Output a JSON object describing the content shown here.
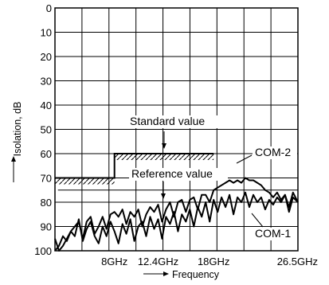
{
  "chart_data": {
    "type": "line",
    "xlabel": "Frequency",
    "ylabel": "Isolation, dB",
    "xlim": [
      2,
      26.5
    ],
    "ylim": [
      100,
      0
    ],
    "x_tick_values": [
      8,
      12.4,
      18,
      26.5
    ],
    "x_tick_labels": [
      "8GHz",
      "12.4GHz",
      "18GHz",
      "26.5GHz"
    ],
    "y_ticks": [
      0,
      10,
      20,
      30,
      40,
      50,
      60,
      70,
      80,
      90,
      100
    ],
    "grid": true,
    "standard_value": {
      "label": "Standard value",
      "steps": [
        {
          "x_start": 2,
          "x_end": 8,
          "y": 70
        },
        {
          "x_start": 8,
          "x_end": 18,
          "y": 60
        }
      ]
    },
    "reference_value": {
      "label": "Reference value",
      "values": [
        [
          2.3,
          75
        ],
        [
          26.5,
          75
        ]
      ]
    },
    "series": [
      {
        "name": "COM-2",
        "color": "#000000",
        "values": [
          [
            2.0,
            95
          ],
          [
            2.4,
            100
          ],
          [
            2.8,
            98
          ],
          [
            3.2,
            95
          ],
          [
            3.6,
            92
          ],
          [
            4.0,
            90
          ],
          [
            4.4,
            88
          ],
          [
            4.8,
            95
          ],
          [
            5.2,
            88
          ],
          [
            5.6,
            86
          ],
          [
            6.0,
            93
          ],
          [
            6.4,
            90
          ],
          [
            6.8,
            86
          ],
          [
            7.2,
            91
          ],
          [
            7.6,
            85
          ],
          [
            8.0,
            84
          ],
          [
            8.4,
            86
          ],
          [
            8.8,
            83
          ],
          [
            9.2,
            89
          ],
          [
            9.6,
            84
          ],
          [
            10.0,
            86
          ],
          [
            10.4,
            83
          ],
          [
            10.8,
            90
          ],
          [
            11.2,
            85
          ],
          [
            11.6,
            82
          ],
          [
            12.0,
            84
          ],
          [
            12.4,
            81
          ],
          [
            12.8,
            88
          ],
          [
            13.2,
            83
          ],
          [
            13.6,
            80
          ],
          [
            14.0,
            86
          ],
          [
            14.4,
            80
          ],
          [
            14.8,
            79
          ],
          [
            15.2,
            84
          ],
          [
            15.6,
            79
          ],
          [
            16.0,
            78
          ],
          [
            16.4,
            83
          ],
          [
            16.8,
            77
          ],
          [
            17.2,
            77
          ],
          [
            17.6,
            80
          ],
          [
            18.0,
            75
          ],
          [
            18.4,
            74
          ],
          [
            18.8,
            73
          ],
          [
            19.2,
            72
          ],
          [
            19.6,
            71
          ],
          [
            20.0,
            72
          ],
          [
            20.4,
            71
          ],
          [
            20.8,
            72
          ],
          [
            21.2,
            70
          ],
          [
            21.6,
            71
          ],
          [
            22.0,
            71
          ],
          [
            22.4,
            72
          ],
          [
            22.8,
            73
          ],
          [
            23.2,
            75
          ],
          [
            23.6,
            76
          ],
          [
            24.0,
            78
          ],
          [
            24.4,
            76
          ],
          [
            24.8,
            79
          ],
          [
            25.2,
            77
          ],
          [
            25.6,
            84
          ],
          [
            26.0,
            78
          ],
          [
            26.5,
            80
          ]
        ]
      },
      {
        "name": "COM-1",
        "color": "#000000",
        "values": [
          [
            2.0,
            100
          ],
          [
            2.4,
            98
          ],
          [
            2.8,
            94
          ],
          [
            3.2,
            96
          ],
          [
            3.6,
            92
          ],
          [
            4.0,
            94
          ],
          [
            4.4,
            87
          ],
          [
            4.8,
            96
          ],
          [
            5.2,
            91
          ],
          [
            5.6,
            88
          ],
          [
            6.0,
            94
          ],
          [
            6.4,
            97
          ],
          [
            6.8,
            90
          ],
          [
            7.2,
            94
          ],
          [
            7.6,
            88
          ],
          [
            8.0,
            92
          ],
          [
            8.4,
            97
          ],
          [
            8.8,
            89
          ],
          [
            9.2,
            93
          ],
          [
            9.6,
            87
          ],
          [
            10.0,
            96
          ],
          [
            10.4,
            90
          ],
          [
            10.8,
            88
          ],
          [
            11.2,
            94
          ],
          [
            11.6,
            86
          ],
          [
            12.0,
            91
          ],
          [
            12.4,
            87
          ],
          [
            12.8,
            95
          ],
          [
            13.2,
            86
          ],
          [
            13.6,
            89
          ],
          [
            14.0,
            84
          ],
          [
            14.4,
            92
          ],
          [
            14.8,
            85
          ],
          [
            15.2,
            88
          ],
          [
            15.6,
            83
          ],
          [
            16.0,
            90
          ],
          [
            16.4,
            82
          ],
          [
            16.8,
            86
          ],
          [
            17.2,
            80
          ],
          [
            17.6,
            88
          ],
          [
            18.0,
            79
          ],
          [
            18.4,
            84
          ],
          [
            18.8,
            78
          ],
          [
            19.2,
            82
          ],
          [
            19.6,
            77
          ],
          [
            20.0,
            85
          ],
          [
            20.4,
            78
          ],
          [
            20.8,
            80
          ],
          [
            21.2,
            76
          ],
          [
            21.6,
            82
          ],
          [
            22.0,
            77
          ],
          [
            22.4,
            80
          ],
          [
            22.8,
            78
          ],
          [
            23.2,
            83
          ],
          [
            23.6,
            79
          ],
          [
            24.0,
            81
          ],
          [
            24.4,
            78
          ],
          [
            24.8,
            80
          ],
          [
            25.2,
            77
          ],
          [
            25.6,
            82
          ],
          [
            26.0,
            76
          ],
          [
            26.5,
            80
          ]
        ]
      }
    ]
  }
}
